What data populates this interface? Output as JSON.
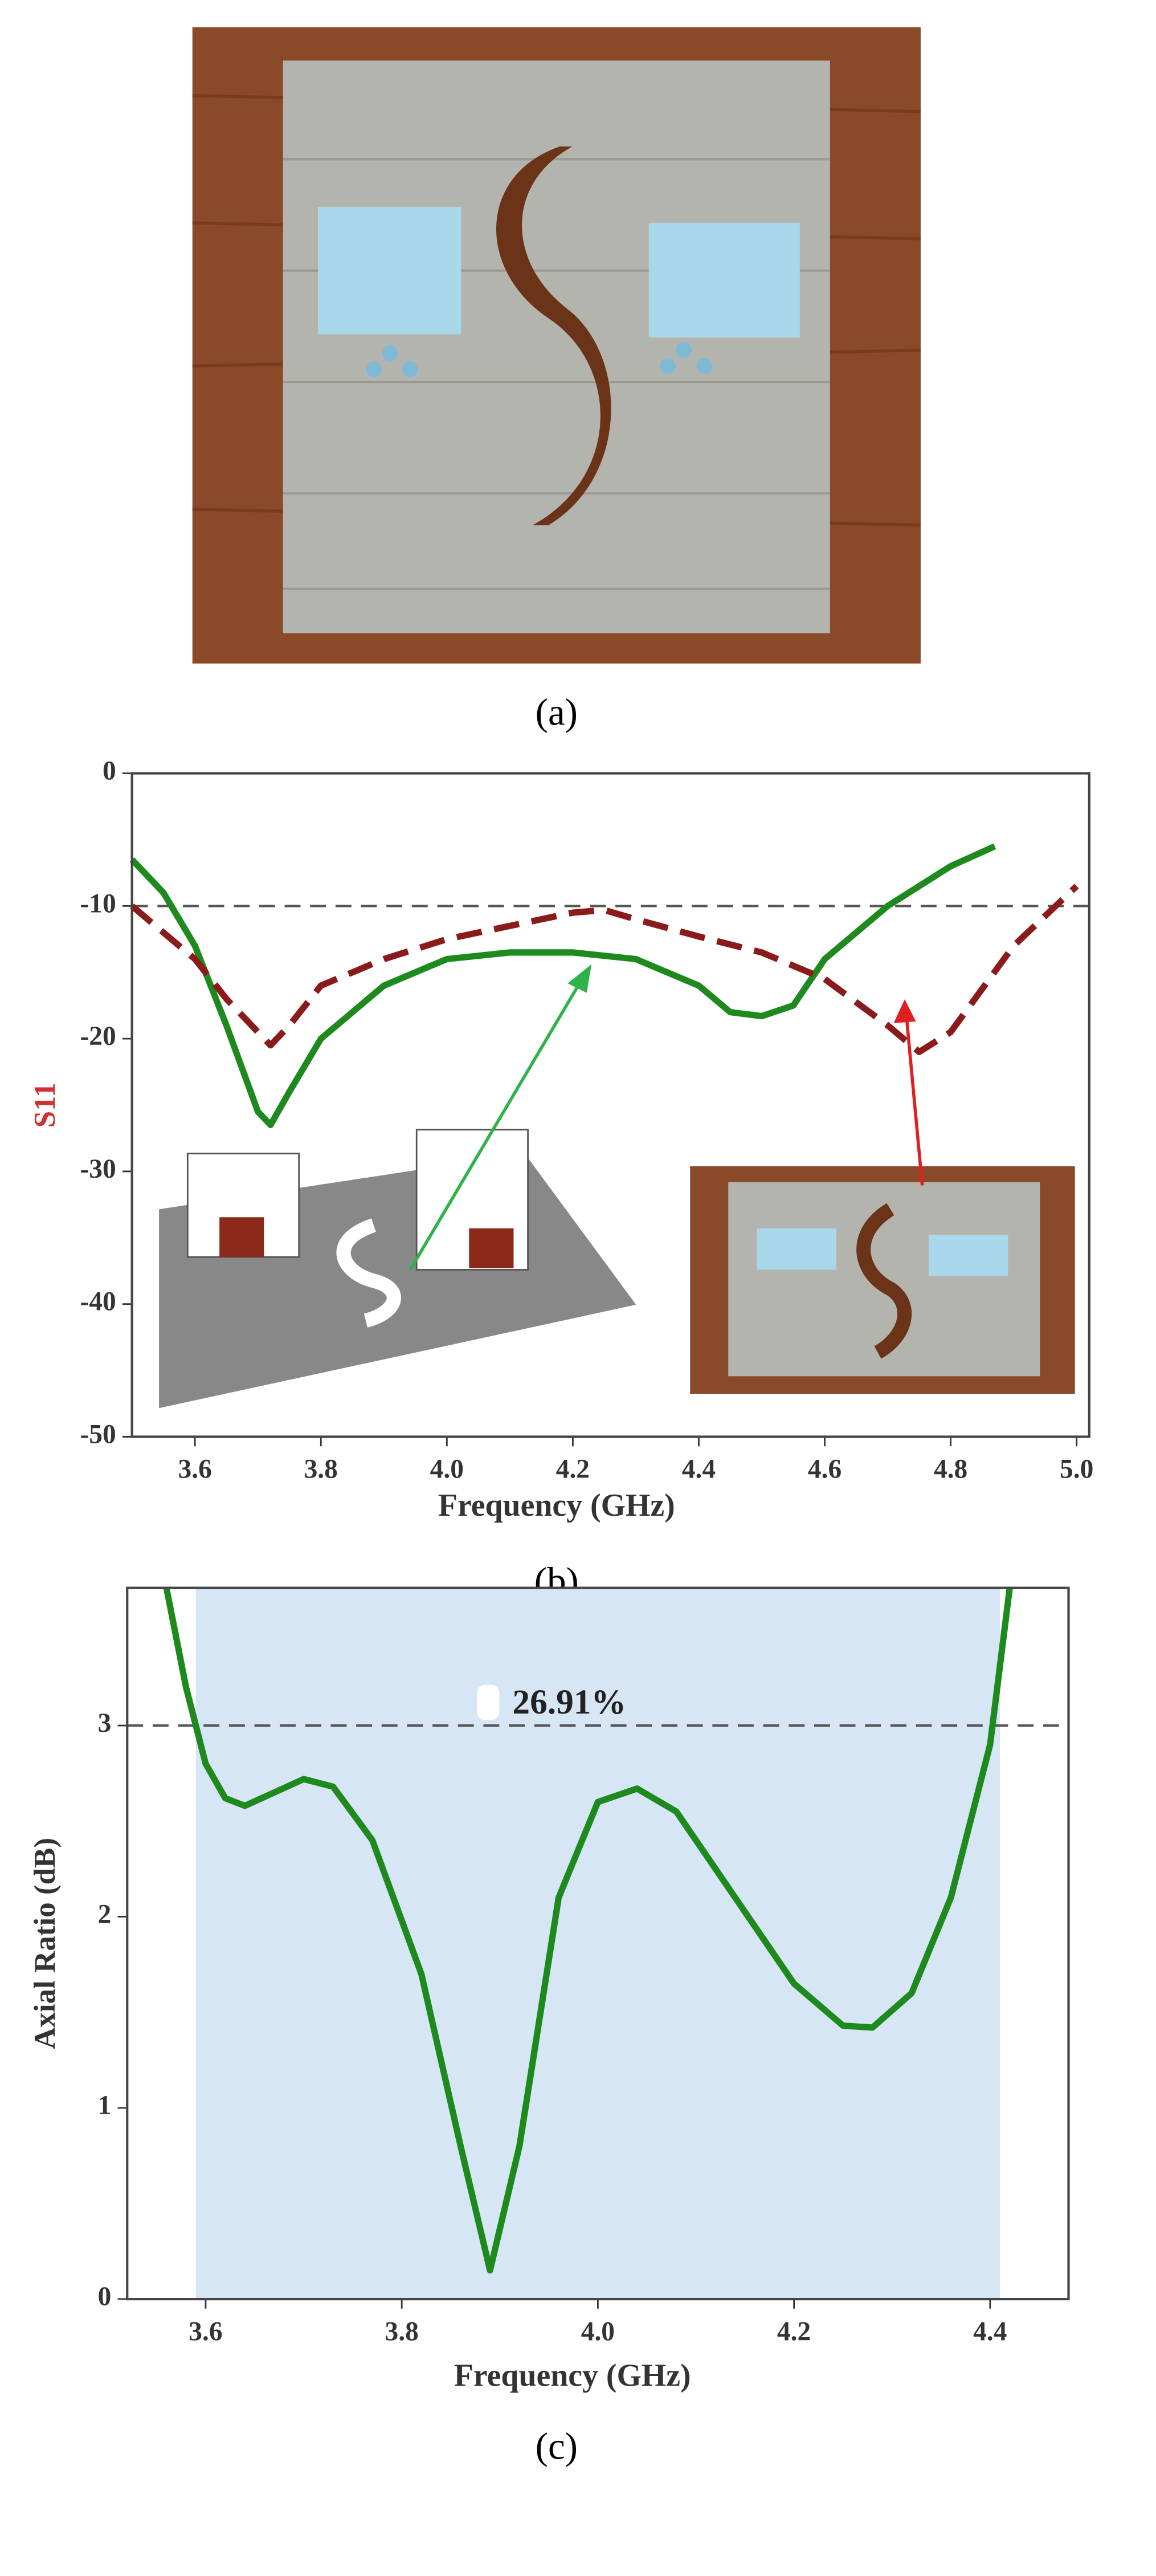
{
  "captions": [
    "(a)",
    "(b)",
    "(c)"
  ],
  "chart_data": [
    {
      "type": "line",
      "ylabel": "S11",
      "xlabel": "Frequency (GHz)",
      "xlim": [
        3.5,
        5.02
      ],
      "ylim": [
        -50,
        0
      ],
      "xticks": [
        3.6,
        3.8,
        {
          "value": 4,
          "label": "4.0"
        },
        4.2,
        4.4,
        4.6,
        4.8,
        {
          "value": 5,
          "label": "5.0"
        }
      ],
      "yticks": [
        -50,
        -40,
        -30,
        -20,
        -10,
        0
      ],
      "hline": -10,
      "series": [
        {
          "color": "#1e8a1e",
          "dash": false,
          "x": [
            3.5,
            3.55,
            3.6,
            3.65,
            3.7,
            3.72,
            3.75,
            3.8,
            3.9,
            4.0,
            4.1,
            4.2,
            4.3,
            4.4,
            4.45,
            4.5,
            4.55,
            4.6,
            4.7,
            4.8,
            4.87
          ],
          "values": [
            -6.5,
            -9,
            -13,
            -19,
            -25.5,
            -26.5,
            -24,
            -20,
            -16,
            -14,
            -13.5,
            -13.5,
            -14,
            -16,
            -18,
            -18.3,
            -17.5,
            -14,
            -10,
            -7,
            -5.5
          ]
        },
        {
          "color": "#8b1a1a",
          "dash": true,
          "x": [
            3.5,
            3.55,
            3.6,
            3.65,
            3.7,
            3.72,
            3.75,
            3.8,
            3.9,
            4.0,
            4.1,
            4.2,
            4.25,
            4.3,
            4.4,
            4.5,
            4.6,
            4.7,
            4.75,
            4.8,
            4.9,
            5.0
          ],
          "values": [
            -10,
            -12,
            -14,
            -17,
            -19.5,
            -20.5,
            -19,
            -16,
            -14,
            -12.5,
            -11.5,
            -10.5,
            -10.3,
            -11,
            -12.3,
            -13.5,
            -15.5,
            -19,
            -21,
            -19.5,
            -13,
            -8.5
          ]
        }
      ]
    },
    {
      "type": "line",
      "ylabel": "Axial Ratio (dB)",
      "xlabel": "Frequency (GHz)",
      "annotation": "26.91%",
      "xlim": [
        3.52,
        4.48
      ],
      "ylim": [
        0,
        3.72
      ],
      "xticks": [
        3.6,
        3.8,
        {
          "value": 4,
          "label": "4.0"
        },
        4.2,
        4.4
      ],
      "yticks": [
        0,
        1,
        2,
        3
      ],
      "hline": 3,
      "band": [
        3.59,
        4.41
      ],
      "band_color": "#d6e6f4",
      "series": [
        {
          "color": "#1e8a1e",
          "dash": false,
          "x": [
            3.56,
            3.58,
            3.6,
            3.62,
            3.64,
            3.67,
            3.7,
            3.73,
            3.77,
            3.82,
            3.86,
            3.89,
            3.92,
            3.96,
            4.0,
            4.04,
            4.08,
            4.14,
            4.2,
            4.25,
            4.28,
            4.32,
            4.36,
            4.4,
            4.42
          ],
          "values": [
            3.72,
            3.2,
            2.8,
            2.62,
            2.58,
            2.65,
            2.72,
            2.68,
            2.4,
            1.7,
            0.8,
            0.15,
            0.8,
            2.1,
            2.6,
            2.67,
            2.55,
            2.1,
            1.65,
            1.43,
            1.42,
            1.6,
            2.1,
            2.9,
            3.72
          ]
        }
      ]
    }
  ]
}
